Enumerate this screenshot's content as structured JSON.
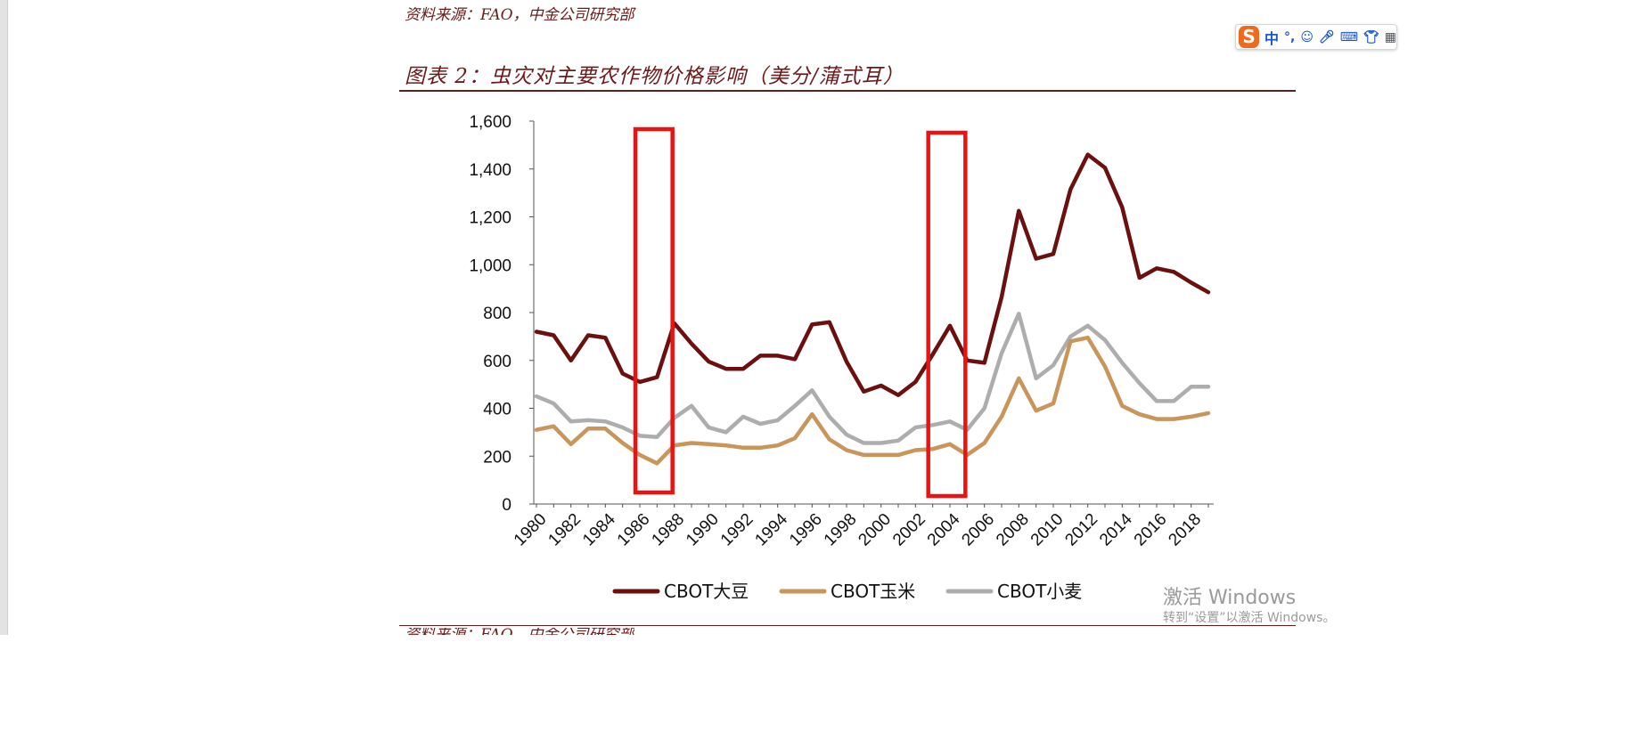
{
  "document": {
    "source_top": "资料来源：FAO，中金公司研究部",
    "figure_title": "图表 2：虫灾对主要农作物价格影响（美分/蒲式耳）",
    "source_bottom": "资料来源：FAO，中金公司研究部"
  },
  "ime_toolbar": {
    "logo": "S",
    "lang_label": "中",
    "icons": [
      "punctuation-icon",
      "emoji-icon",
      "microphone-icon",
      "keyboard-icon",
      "shirt-icon",
      "grid-icon"
    ]
  },
  "watermark": {
    "line1": "激活 Windows",
    "line2": "转到“设置”以激活 Windows。"
  },
  "chart_data": {
    "type": "line",
    "title": "虫灾对主要农作物价格影响（美分/蒲式耳）",
    "x": [
      1980,
      1981,
      1982,
      1983,
      1984,
      1985,
      1986,
      1987,
      1988,
      1989,
      1990,
      1991,
      1992,
      1993,
      1994,
      1995,
      1996,
      1997,
      1998,
      1999,
      2000,
      2001,
      2002,
      2003,
      2004,
      2005,
      2006,
      2007,
      2008,
      2009,
      2010,
      2011,
      2012,
      2013,
      2014,
      2015,
      2016,
      2017,
      2018,
      2019
    ],
    "x_tick_labels": [
      "1980",
      "1982",
      "1984",
      "1986",
      "1988",
      "1990",
      "1992",
      "1994",
      "1996",
      "1998",
      "2000",
      "2002",
      "2004",
      "2006",
      "2008",
      "2010",
      "2012",
      "2014",
      "2016",
      "2018"
    ],
    "ylim": [
      0,
      1600
    ],
    "y_ticks": [
      0,
      200,
      400,
      600,
      800,
      1000,
      1200,
      1400,
      1600
    ],
    "y_tick_labels": [
      "0",
      "200",
      "400",
      "600",
      "800",
      "1,000",
      "1,200",
      "1,400",
      "1,600"
    ],
    "grid": false,
    "legend_position": "bottom",
    "series": [
      {
        "name": "CBOT大豆",
        "color": "#6b0f0f",
        "values": [
          720,
          705,
          600,
          705,
          695,
          545,
          510,
          530,
          755,
          670,
          595,
          565,
          565,
          620,
          620,
          605,
          750,
          760,
          595,
          470,
          495,
          455,
          510,
          625,
          745,
          600,
          590,
          865,
          1225,
          1025,
          1045,
          1315,
          1460,
          1405,
          1240,
          945,
          985,
          970,
          925,
          885
        ]
      },
      {
        "name": "CBOT玉米",
        "color": "#c8955a",
        "values": [
          310,
          325,
          250,
          315,
          315,
          255,
          205,
          170,
          245,
          255,
          250,
          245,
          235,
          235,
          245,
          275,
          375,
          270,
          225,
          205,
          205,
          205,
          225,
          230,
          250,
          205,
          255,
          365,
          525,
          390,
          420,
          680,
          695,
          575,
          410,
          375,
          355,
          355,
          365,
          380
        ]
      },
      {
        "name": "CBOT小麦",
        "color": "#adadad",
        "values": [
          450,
          420,
          345,
          350,
          345,
          320,
          285,
          280,
          360,
          410,
          320,
          300,
          365,
          335,
          350,
          410,
          475,
          365,
          290,
          255,
          255,
          265,
          320,
          330,
          345,
          310,
          400,
          630,
          795,
          525,
          580,
          700,
          745,
          685,
          590,
          505,
          430,
          430,
          490,
          490
        ]
      }
    ],
    "highlight_boxes": [
      {
        "x_start": 1986,
        "x_end": 1988,
        "color": "#ee1111"
      },
      {
        "x_start": 2003,
        "x_end": 2005,
        "color": "#ee1111"
      }
    ]
  }
}
